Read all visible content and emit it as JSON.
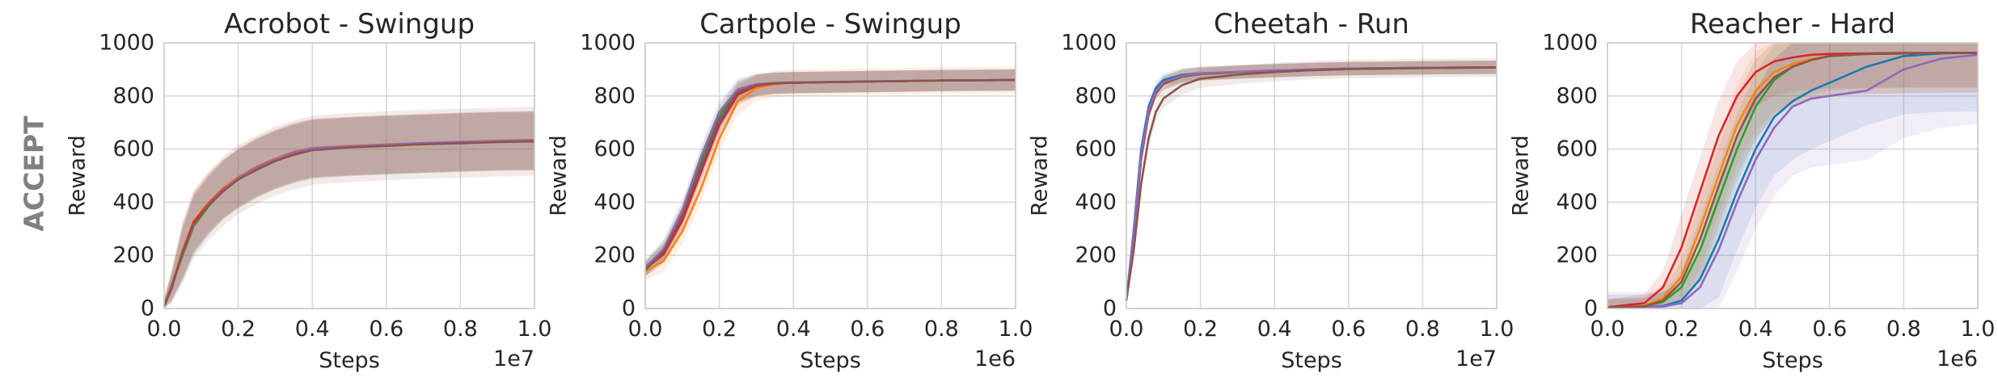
{
  "figure": {
    "row_label": "ACCEPT",
    "colors": {
      "row_label": "#808080",
      "grid": "#d9d9d9",
      "series": [
        "#1f77b4",
        "#ff7f0e",
        "#2ca02c",
        "#d62728",
        "#9467bd",
        "#8c564b"
      ]
    }
  },
  "chart_data": [
    {
      "type": "line",
      "title": "Acrobot - Swingup",
      "xlabel": "Steps",
      "ylabel": "Reward",
      "x_offset_label": "1e7",
      "xlim": [
        0.0,
        1.0
      ],
      "ylim": [
        0,
        1000
      ],
      "xticks": [
        "0.0",
        "0.2",
        "0.4",
        "0.6",
        "0.8",
        "1.0"
      ],
      "yticks": [
        "0",
        "200",
        "400",
        "600",
        "800",
        "1000"
      ],
      "grid": true,
      "x": [
        0.0,
        0.02,
        0.05,
        0.08,
        0.12,
        0.16,
        0.2,
        0.25,
        0.3,
        0.35,
        0.4,
        0.5,
        0.6,
        0.7,
        0.8,
        0.9,
        1.0
      ],
      "series": [
        {
          "values": [
            10,
            80,
            210,
            320,
            390,
            450,
            490,
            530,
            560,
            585,
            600,
            610,
            615,
            620,
            625,
            628,
            630
          ],
          "band": 110
        },
        {
          "values": [
            10,
            90,
            220,
            330,
            400,
            455,
            495,
            535,
            565,
            590,
            605,
            612,
            618,
            622,
            628,
            632,
            635
          ],
          "band": 110
        },
        {
          "values": [
            10,
            85,
            200,
            310,
            385,
            445,
            485,
            525,
            560,
            580,
            598,
            608,
            614,
            619,
            624,
            629,
            632
          ],
          "band": 110
        },
        {
          "values": [
            10,
            75,
            215,
            325,
            395,
            450,
            488,
            528,
            558,
            582,
            602,
            610,
            616,
            621,
            626,
            630,
            628
          ],
          "band": 110
        },
        {
          "values": [
            10,
            88,
            205,
            315,
            392,
            448,
            492,
            532,
            562,
            588,
            604,
            611,
            617,
            623,
            627,
            631,
            634
          ],
          "band": 110
        },
        {
          "values": [
            10,
            78,
            212,
            318,
            388,
            442,
            486,
            522,
            555,
            578,
            596,
            606,
            612,
            618,
            622,
            626,
            629
          ],
          "band": 130
        }
      ]
    },
    {
      "type": "line",
      "title": "Cartpole - Swingup",
      "xlabel": "Steps",
      "ylabel": "Reward",
      "x_offset_label": "1e6",
      "xlim": [
        0.0,
        1.0
      ],
      "ylim": [
        0,
        1000
      ],
      "xticks": [
        "0.0",
        "0.2",
        "0.4",
        "0.6",
        "0.8",
        "1.0"
      ],
      "yticks": [
        "0",
        "200",
        "400",
        "600",
        "800",
        "1000"
      ],
      "grid": true,
      "x": [
        0.0,
        0.05,
        0.1,
        0.15,
        0.2,
        0.25,
        0.3,
        0.35,
        0.4,
        0.5,
        0.6,
        0.8,
        1.0
      ],
      "series": [
        {
          "values": [
            150,
            210,
            340,
            520,
            700,
            810,
            840,
            848,
            850,
            852,
            854,
            858,
            860
          ],
          "band": 40
        },
        {
          "values": [
            140,
            180,
            290,
            450,
            640,
            780,
            830,
            845,
            850,
            852,
            854,
            858,
            860
          ],
          "band": 50
        },
        {
          "values": [
            155,
            220,
            360,
            560,
            730,
            820,
            842,
            848,
            850,
            852,
            854,
            858,
            860
          ],
          "band": 40
        },
        {
          "values": [
            148,
            205,
            330,
            510,
            690,
            805,
            838,
            847,
            850,
            852,
            854,
            858,
            860
          ],
          "band": 40
        },
        {
          "values": [
            152,
            225,
            370,
            570,
            740,
            825,
            845,
            849,
            851,
            853,
            855,
            858,
            860
          ],
          "band": 40
        },
        {
          "values": [
            145,
            215,
            350,
            540,
            715,
            815,
            840,
            848,
            850,
            852,
            854,
            858,
            860
          ],
          "band": 40
        }
      ]
    },
    {
      "type": "line",
      "title": "Cheetah - Run",
      "xlabel": "Steps",
      "ylabel": "Reward",
      "x_offset_label": "1e7",
      "xlim": [
        0.0,
        1.0
      ],
      "ylim": [
        0,
        1000
      ],
      "xticks": [
        "0.0",
        "0.2",
        "0.4",
        "0.6",
        "0.8",
        "1.0"
      ],
      "yticks": [
        "0",
        "200",
        "400",
        "600",
        "800",
        "1000"
      ],
      "grid": true,
      "x": [
        0.0,
        0.02,
        0.04,
        0.06,
        0.08,
        0.1,
        0.15,
        0.2,
        0.3,
        0.4,
        0.5,
        0.6,
        0.8,
        1.0
      ],
      "series": [
        {
          "values": [
            30,
            300,
            600,
            760,
            830,
            860,
            880,
            885,
            890,
            895,
            900,
            903,
            906,
            908
          ],
          "band": 25
        },
        {
          "values": [
            30,
            280,
            570,
            740,
            815,
            850,
            875,
            883,
            890,
            895,
            900,
            903,
            906,
            908
          ],
          "band": 25
        },
        {
          "values": [
            30,
            270,
            560,
            730,
            810,
            845,
            872,
            882,
            889,
            894,
            899,
            902,
            905,
            907
          ],
          "band": 25
        },
        {
          "values": [
            30,
            275,
            565,
            735,
            812,
            848,
            874,
            884,
            890,
            895,
            900,
            903,
            906,
            908
          ],
          "band": 25
        },
        {
          "values": [
            30,
            285,
            575,
            745,
            818,
            852,
            876,
            885,
            891,
            896,
            900,
            903,
            906,
            908
          ],
          "band": 25
        },
        {
          "values": [
            30,
            220,
            470,
            640,
            740,
            790,
            840,
            865,
            880,
            890,
            897,
            901,
            905,
            907
          ],
          "band": 35
        }
      ]
    },
    {
      "type": "line",
      "title": "Reacher - Hard",
      "xlabel": "Steps",
      "ylabel": "Reward",
      "x_offset_label": "1e6",
      "xlim": [
        0.0,
        1.0
      ],
      "ylim": [
        0,
        1000
      ],
      "xticks": [
        "0.0",
        "0.2",
        "0.4",
        "0.6",
        "0.8",
        "1.0"
      ],
      "yticks": [
        "0",
        "200",
        "400",
        "600",
        "800",
        "1000"
      ],
      "grid": true,
      "x": [
        0.0,
        0.1,
        0.15,
        0.2,
        0.25,
        0.3,
        0.35,
        0.4,
        0.45,
        0.5,
        0.55,
        0.6,
        0.7,
        0.8,
        0.9,
        1.0
      ],
      "series": [
        {
          "values": [
            5,
            5,
            10,
            30,
            110,
            260,
            440,
            600,
            720,
            780,
            820,
            850,
            910,
            950,
            960,
            962
          ],
          "band": 220
        },
        {
          "values": [
            5,
            10,
            40,
            120,
            300,
            500,
            690,
            820,
            890,
            920,
            940,
            950,
            958,
            960,
            962,
            962
          ],
          "band": 150
        },
        {
          "values": [
            5,
            8,
            25,
            80,
            220,
            410,
            600,
            760,
            860,
            910,
            935,
            950,
            958,
            960,
            962,
            962
          ],
          "band": 130
        },
        {
          "values": [
            5,
            20,
            80,
            230,
            440,
            650,
            800,
            890,
            930,
            945,
            955,
            958,
            960,
            962,
            962,
            962
          ],
          "band": 130
        },
        {
          "values": [
            5,
            5,
            8,
            20,
            80,
            220,
            400,
            560,
            680,
            760,
            790,
            800,
            820,
            900,
            940,
            955
          ],
          "band": 260
        },
        {
          "values": [
            5,
            8,
            30,
            100,
            260,
            460,
            650,
            790,
            870,
            910,
            935,
            950,
            958,
            960,
            962,
            962
          ],
          "band": 150
        }
      ]
    }
  ]
}
